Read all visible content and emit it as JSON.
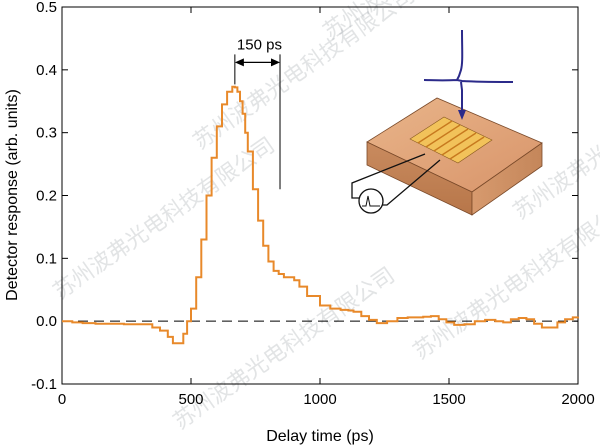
{
  "chart_data": {
    "type": "line",
    "xlabel": "Delay time (ps)",
    "ylabel": "Detector response (arb. units)",
    "xlim": [
      0,
      2000
    ],
    "ylim": [
      -0.1,
      0.5
    ],
    "xticks": [
      0,
      500,
      1000,
      1500,
      2000
    ],
    "yticks": [
      -0.1,
      0.0,
      0.1,
      0.2,
      0.3,
      0.4,
      0.5
    ],
    "xtick_labels": [
      "0",
      "500",
      "1000",
      "1500",
      "2000"
    ],
    "ytick_labels": [
      "-0.1",
      "0.0",
      "0.1",
      "0.2",
      "0.3",
      "0.4",
      "0.5"
    ],
    "baseline": {
      "y": 0.0,
      "style": "dashed"
    },
    "grid": false,
    "series": [
      {
        "color": "#e8892a",
        "x": [
          0,
          20,
          40,
          80,
          130,
          180,
          240,
          300,
          350,
          380,
          410,
          430,
          450,
          470,
          485,
          500,
          520,
          540,
          560,
          580,
          600,
          620,
          640,
          660,
          670,
          680,
          690,
          700,
          710,
          720,
          740,
          760,
          780,
          800,
          820,
          840,
          860,
          880,
          900,
          920,
          950,
          1000,
          1040,
          1080,
          1110,
          1130,
          1160,
          1190,
          1220,
          1260,
          1300,
          1340,
          1370,
          1400,
          1430,
          1460,
          1490,
          1520,
          1560,
          1600,
          1640,
          1680,
          1710,
          1740,
          1770,
          1800,
          1830,
          1860,
          1890,
          1920,
          1950,
          1980,
          2000
        ],
        "y": [
          0.0,
          0.0,
          -0.002,
          -0.003,
          -0.004,
          -0.004,
          -0.005,
          -0.005,
          -0.01,
          -0.015,
          -0.025,
          -0.035,
          -0.035,
          -0.02,
          0.0,
          0.02,
          0.07,
          0.13,
          0.2,
          0.26,
          0.31,
          0.345,
          0.365,
          0.373,
          0.372,
          0.365,
          0.35,
          0.33,
          0.3,
          0.27,
          0.21,
          0.16,
          0.12,
          0.095,
          0.08,
          0.075,
          0.07,
          0.07,
          0.065,
          0.055,
          0.04,
          0.025,
          0.02,
          0.018,
          0.017,
          0.015,
          0.008,
          0.002,
          -0.003,
          0.0,
          0.005,
          0.006,
          0.006,
          0.007,
          0.008,
          0.003,
          -0.002,
          -0.006,
          -0.005,
          0.0,
          0.002,
          0.0,
          -0.002,
          0.003,
          0.005,
          0.003,
          -0.004,
          -0.01,
          -0.01,
          -0.002,
          0.003,
          0.006,
          0.007
        ]
      }
    ],
    "annotations": [
      {
        "text": "150 ps",
        "type": "interval",
        "x1": 670,
        "x2": 845,
        "y": 0.38
      },
      {
        "type": "vline",
        "x": 845,
        "y1": 0.21,
        "y2": 0.38
      }
    ]
  },
  "colors": {
    "series": "#e8892a",
    "inset_pulse": "#2b2a8a",
    "block_top": "#e6a878",
    "block_side": "#cc8a5e",
    "block_front": "#b97a52",
    "electrode": "#f2c25a"
  },
  "watermark": {
    "text": "苏州波弗光电科技有限公司"
  }
}
